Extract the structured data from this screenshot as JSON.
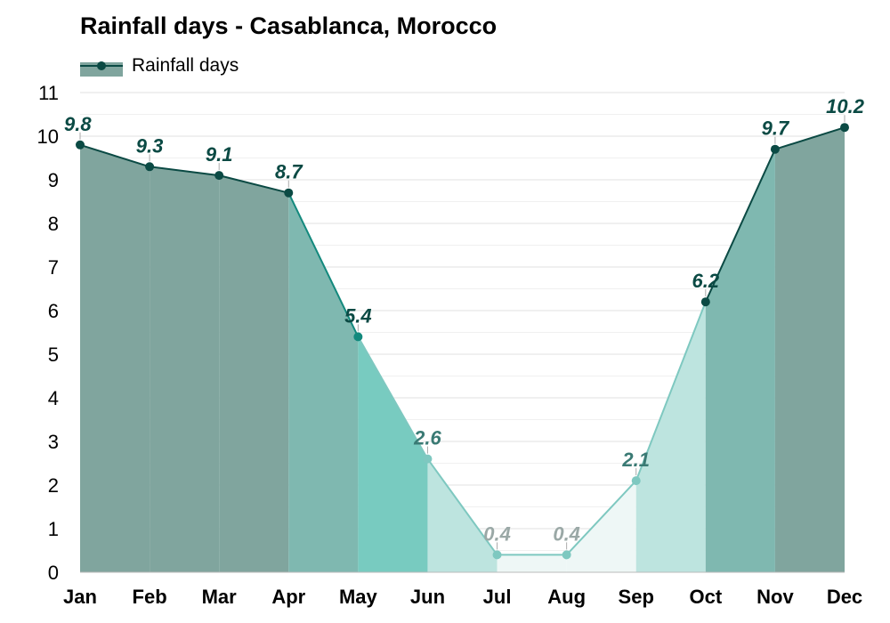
{
  "chart_data": {
    "type": "area",
    "title": "Rainfall days - Casablanca, Morocco",
    "xlabel": "",
    "ylabel": "",
    "categories": [
      "Jan",
      "Feb",
      "Mar",
      "Apr",
      "May",
      "Jun",
      "Jul",
      "Aug",
      "Sep",
      "Oct",
      "Nov",
      "Dec"
    ],
    "series": [
      {
        "name": "Rainfall days",
        "values": [
          9.8,
          9.3,
          9.1,
          8.7,
          5.4,
          2.6,
          0.4,
          0.4,
          2.1,
          6.2,
          9.7,
          10.2
        ]
      }
    ],
    "data_labels": [
      "9.8",
      "9.3",
      "9.1",
      "8.7",
      "5.4",
      "2.6",
      "0.4",
      "0.4",
      "2.1",
      "6.2",
      "9.7",
      "10.2"
    ],
    "ylim": [
      0,
      11
    ],
    "yticks": [
      "0",
      "1",
      "2",
      "3",
      "4",
      "5",
      "6",
      "7",
      "8",
      "9",
      "10",
      "11"
    ],
    "grid": true,
    "legend_position": "top-left",
    "colors": {
      "line_high": "#0b4a44",
      "line_mid": "#13897d",
      "line_low": "#7ec8c0",
      "fill_high": "#80a59e",
      "fill_mid_high": "#7fb8b0",
      "fill_mid": "#78cbc0",
      "fill_low": "#bde4df",
      "fill_lowest": "#eef7f6",
      "label_high": "#0b4a44",
      "label_mid": "#3a7a74",
      "label_low": "#9aa8a6",
      "grid": "#e6e6e6"
    }
  }
}
